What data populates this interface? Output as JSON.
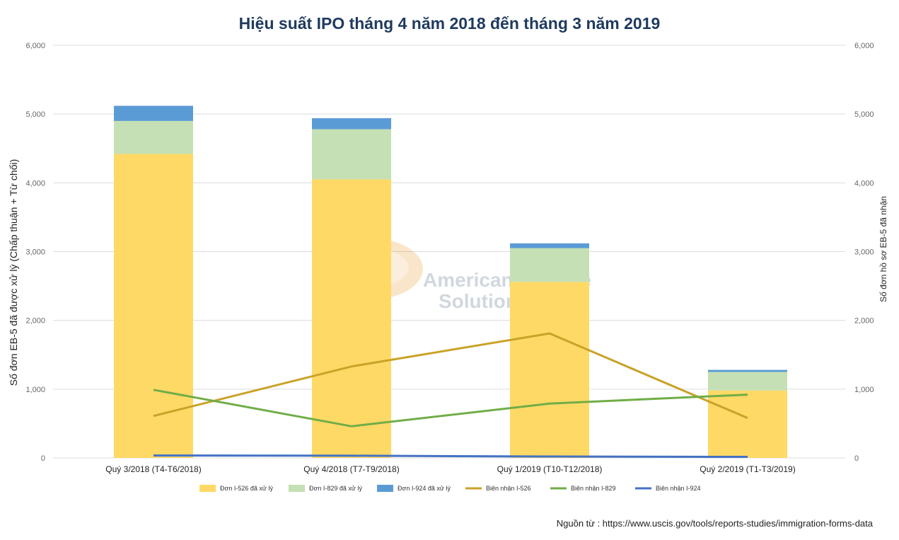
{
  "chart_data": {
    "type": "bar",
    "title": "Hiệu suất IPO tháng 4 năm 2018 đến tháng 3 năm 2019",
    "ylabel_left": "Số đơn EB-5 đã được xử lý (Chấp thuận + Từ chối)",
    "ylabel_right": "Số đơn hồ sơ EB-5 đã nhận",
    "ylim": [
      0,
      6000
    ],
    "yticks": [
      "0",
      "1,000",
      "2,000",
      "3,000",
      "4,000",
      "5,000",
      "6,000"
    ],
    "categories": [
      "Quý 3/2018 (T4-T6/2018)",
      "Quý 4/2018 (T7-T9/2018)",
      "Quý 1/2019 (T10-T12/2018)",
      "Quý 2/2019 (T1-T3/2019)"
    ],
    "stacked_series": [
      {
        "name": "Đơn I-526 đã xử lý",
        "color": "#ffd966",
        "values": [
          4420,
          4050,
          2560,
          980
        ]
      },
      {
        "name": "Đơn I-829 đã xử lý",
        "color": "#c5e0b4",
        "values": [
          480,
          730,
          490,
          270
        ]
      },
      {
        "name": "Đơn I-924 đã xử lý",
        "color": "#5b9bd5",
        "values": [
          220,
          160,
          70,
          30
        ]
      }
    ],
    "line_series": [
      {
        "name": "Biên nhận I-526",
        "color": "#c9a227",
        "values": [
          610,
          1330,
          1810,
          580
        ]
      },
      {
        "name": "Biên nhận I-829",
        "color": "#70ad47",
        "values": [
          990,
          460,
          790,
          920
        ]
      },
      {
        "name": "Biên nhận I-924",
        "color": "#4472c4",
        "values": [
          35,
          32,
          20,
          15
        ]
      }
    ]
  },
  "watermark": {
    "line1": "American Venture",
    "line2": "Solutions EB-5"
  },
  "source_note": "Nguồn từ : https://www.uscis.gov/tools/reports-studies/immigration-forms-data"
}
